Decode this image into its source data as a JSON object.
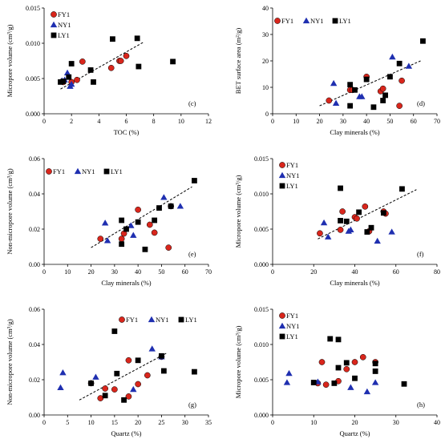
{
  "colors": {
    "FY1": "#d9261c",
    "NY1": "#1f2fb0",
    "LY1": "#000000"
  },
  "chart_data": [
    {
      "panel": "(c)",
      "type": "scatter",
      "xlabel": "TOC (%)",
      "ylabel": "Micropore volume (cm³/g)",
      "xlim": [
        0,
        12
      ],
      "ylim": [
        0,
        0.015
      ],
      "xticks": [
        0,
        2,
        4,
        6,
        8,
        10,
        12
      ],
      "yticks": [
        0,
        0.005,
        0.01,
        0.015
      ],
      "xtick_labels": [
        "0",
        "2",
        "4",
        "6",
        "8",
        "10",
        "12"
      ],
      "ytick_labels": [
        "0.000",
        "0.005",
        "0.010",
        "0.015"
      ],
      "legend": "top-left",
      "trend": [
        [
          1.2,
          0.0035
        ],
        [
          7.3,
          0.0102
        ]
      ],
      "series": [
        {
          "name": "FY1",
          "marker": "circle",
          "points": [
            [
              1.4,
              0.0045
            ],
            [
              2.0,
              0.0045
            ],
            [
              2.4,
              0.0048
            ],
            [
              2.8,
              0.0074
            ],
            [
              4.9,
              0.0065
            ],
            [
              5.5,
              0.0075
            ],
            [
              5.6,
              0.0075
            ],
            [
              6.0,
              0.0082
            ]
          ]
        },
        {
          "name": "NY1",
          "marker": "triangle",
          "points": [
            [
              1.3,
              0.0047
            ],
            [
              1.5,
              0.0048
            ],
            [
              1.7,
              0.0058
            ],
            [
              1.9,
              0.0039
            ],
            [
              2.0,
              0.0042
            ]
          ]
        },
        {
          "name": "LY1",
          "marker": "square",
          "points": [
            [
              1.2,
              0.0045
            ],
            [
              1.4,
              0.0046
            ],
            [
              1.8,
              0.0052
            ],
            [
              2.0,
              0.0071
            ],
            [
              3.4,
              0.0062
            ],
            [
              3.6,
              0.0045
            ],
            [
              5.0,
              0.0106
            ],
            [
              6.8,
              0.0107
            ],
            [
              6.9,
              0.0067
            ],
            [
              9.4,
              0.0074
            ]
          ]
        }
      ]
    },
    {
      "panel": "(d)",
      "type": "scatter",
      "xlabel": "Clay minerals (%)",
      "ylabel": "BET surface area (m²/g)",
      "xlim": [
        0,
        70
      ],
      "ylim": [
        0,
        40
      ],
      "xticks": [
        0,
        10,
        20,
        30,
        40,
        50,
        60,
        70
      ],
      "yticks": [
        0,
        10,
        20,
        30,
        40
      ],
      "xtick_labels": [
        "0",
        "10",
        "20",
        "30",
        "40",
        "50",
        "60",
        "70"
      ],
      "ytick_labels": [
        "0",
        "10",
        "20",
        "30",
        "40"
      ],
      "legend": "top-left-row",
      "trend": [
        [
          20,
          3
        ],
        [
          63,
          20
        ]
      ],
      "series": [
        {
          "name": "FY1",
          "marker": "circle",
          "points": [
            [
              24,
              5
            ],
            [
              33,
              9
            ],
            [
              34,
              9
            ],
            [
              40,
              14
            ],
            [
              46,
              8.5
            ],
            [
              47,
              9.5
            ],
            [
              54,
              3
            ],
            [
              55,
              12.5
            ]
          ]
        },
        {
          "name": "NY1",
          "marker": "triangle",
          "points": [
            [
              26,
              11.5
            ],
            [
              27,
              4
            ],
            [
              37,
              6.5
            ],
            [
              38,
              6.5
            ],
            [
              51,
              21.5
            ],
            [
              58,
              18
            ]
          ]
        },
        {
          "name": "LY1",
          "marker": "square",
          "points": [
            [
              33,
              11
            ],
            [
              33,
              3
            ],
            [
              35,
              9
            ],
            [
              40,
              13
            ],
            [
              43,
              2.5
            ],
            [
              47,
              5
            ],
            [
              48,
              7
            ],
            [
              50,
              14
            ],
            [
              54,
              19
            ],
            [
              64,
              27.5
            ]
          ]
        }
      ]
    },
    {
      "panel": "(e)",
      "type": "scatter",
      "xlabel": "Clay minerals (%)",
      "ylabel": "Non-micropore volume (cm³/g)",
      "xlim": [
        0,
        70
      ],
      "ylim": [
        0,
        0.06
      ],
      "xticks": [
        0,
        10,
        20,
        30,
        40,
        50,
        60,
        70
      ],
      "yticks": [
        0,
        0.02,
        0.04,
        0.06
      ],
      "xtick_labels": [
        "0",
        "10",
        "20",
        "30",
        "40",
        "50",
        "60",
        "70"
      ],
      "ytick_labels": [
        "0.00",
        "0.02",
        "0.04",
        "0.06"
      ],
      "legend": "top-left-row",
      "trend": [
        [
          20,
          0.0095
        ],
        [
          63,
          0.044
        ]
      ],
      "series": [
        {
          "name": "FY1",
          "marker": "circle",
          "points": [
            [
              24,
              0.0145
            ],
            [
              33,
              0.0145
            ],
            [
              34,
              0.0175
            ],
            [
              40,
              0.031
            ],
            [
              45,
              0.0225
            ],
            [
              47,
              0.018
            ],
            [
              53,
              0.0095
            ],
            [
              54,
              0.033
            ]
          ]
        },
        {
          "name": "NY1",
          "marker": "triangle",
          "points": [
            [
              26,
              0.0235
            ],
            [
              27,
              0.0135
            ],
            [
              37,
              0.022
            ],
            [
              38,
              0.0165
            ],
            [
              51,
              0.038
            ],
            [
              58,
              0.033
            ]
          ]
        },
        {
          "name": "LY1",
          "marker": "square",
          "points": [
            [
              33,
              0.025
            ],
            [
              33,
              0.0115
            ],
            [
              35,
              0.02
            ],
            [
              40,
              0.024
            ],
            [
              43,
              0.0085
            ],
            [
              47,
              0.025
            ],
            [
              49,
              0.032
            ],
            [
              54,
              0.033
            ],
            [
              64,
              0.0475
            ]
          ]
        }
      ]
    },
    {
      "panel": "(f)",
      "type": "scatter",
      "xlabel": "Clay minerals (%)",
      "ylabel": "Micropore volume (cm³/g)",
      "xlim": [
        0,
        80
      ],
      "ylim": [
        0,
        0.015
      ],
      "xticks": [
        0,
        20,
        40,
        60,
        80
      ],
      "yticks": [
        0,
        0.005,
        0.01,
        0.015
      ],
      "xtick_labels": [
        "0",
        "20",
        "40",
        "60",
        "80"
      ],
      "ytick_labels": [
        "0.000",
        "0.005",
        "0.010",
        "0.015"
      ],
      "legend": "top-left",
      "trend": [
        [
          22,
          0.0036
        ],
        [
          70,
          0.0106
        ]
      ],
      "series": [
        {
          "name": "FY1",
          "marker": "circle",
          "points": [
            [
              23,
              0.0044
            ],
            [
              33,
              0.0049
            ],
            [
              34,
              0.0075
            ],
            [
              40,
              0.0067
            ],
            [
              41,
              0.0065
            ],
            [
              45,
              0.0082
            ],
            [
              47,
              0.0047
            ],
            [
              54,
              0.0075
            ],
            [
              55,
              0.0072
            ]
          ]
        },
        {
          "name": "NY1",
          "marker": "triangle",
          "points": [
            [
              25,
              0.0059
            ],
            [
              27,
              0.0039
            ],
            [
              37,
              0.0047
            ],
            [
              38,
              0.0049
            ],
            [
              51,
              0.0033
            ],
            [
              58,
              0.0046
            ]
          ]
        },
        {
          "name": "LY1",
          "marker": "square",
          "points": [
            [
              33,
              0.0108
            ],
            [
              33,
              0.0062
            ],
            [
              36,
              0.0061
            ],
            [
              42,
              0.0074
            ],
            [
              46,
              0.0046
            ],
            [
              48,
              0.0052
            ],
            [
              54,
              0.0073
            ],
            [
              63,
              0.0107
            ]
          ]
        }
      ]
    },
    {
      "panel": "(g)",
      "type": "scatter",
      "xlabel": "Quartz (%)",
      "ylabel": "Non-micropore volume (cm³/g)",
      "xlim": [
        0,
        35
      ],
      "ylim": [
        0,
        0.06
      ],
      "xticks": [
        0,
        5,
        10,
        15,
        20,
        25,
        30,
        35
      ],
      "yticks": [
        0,
        0.02,
        0.04,
        0.06
      ],
      "xtick_labels": [
        "0",
        "5",
        "10",
        "15",
        "20",
        "25",
        "30",
        "35"
      ],
      "ytick_labels": [
        "0.00",
        "0.02",
        "0.04",
        "0.06"
      ],
      "legend": "top-right-row",
      "trend": [
        [
          7.5,
          0.0085
        ],
        [
          26,
          0.035
        ]
      ],
      "series": [
        {
          "name": "FY1",
          "marker": "circle",
          "points": [
            [
              10,
              0.018
            ],
            [
              12,
              0.0095
            ],
            [
              13,
              0.015
            ],
            [
              15,
              0.0145
            ],
            [
              18,
              0.031
            ],
            [
              18,
              0.0105
            ],
            [
              20,
              0.0175
            ],
            [
              22,
              0.0225
            ],
            [
              25,
              0.033
            ]
          ]
        },
        {
          "name": "NY1",
          "marker": "triangle",
          "points": [
            [
              3.5,
              0.0155
            ],
            [
              4,
              0.024
            ],
            [
              11,
              0.0215
            ],
            [
              19,
              0.0145
            ],
            [
              23,
              0.0375
            ],
            [
              25,
              0.033
            ]
          ]
        },
        {
          "name": "LY1",
          "marker": "square",
          "points": [
            [
              10,
              0.018
            ],
            [
              13,
              0.011
            ],
            [
              15,
              0.0475
            ],
            [
              15.5,
              0.0235
            ],
            [
              17,
              0.0085
            ],
            [
              20,
              0.031
            ],
            [
              25,
              0.0335
            ],
            [
              25.5,
              0.025
            ],
            [
              32,
              0.0245
            ]
          ]
        }
      ]
    },
    {
      "panel": "(h)",
      "type": "scatter",
      "xlabel": "Quartz (%)",
      "ylabel": "Micropore volume (cm³/g)",
      "xlim": [
        0,
        40
      ],
      "ylim": [
        0,
        0.015
      ],
      "xticks": [
        0,
        10,
        20,
        30,
        40
      ],
      "yticks": [
        0,
        0.005,
        0.01,
        0.015
      ],
      "xtick_labels": [
        "0",
        "10",
        "20",
        "30",
        "40"
      ],
      "ytick_labels": [
        "0.000",
        "0.005",
        "0.010",
        "0.015"
      ],
      "legend": "top-left",
      "trend": null,
      "series": [
        {
          "name": "FY1",
          "marker": "circle",
          "points": [
            [
              11,
              0.0045
            ],
            [
              12,
              0.0075
            ],
            [
              13,
              0.0043
            ],
            [
              16,
              0.0048
            ],
            [
              18,
              0.0065
            ],
            [
              20,
              0.0075
            ],
            [
              22,
              0.0082
            ],
            [
              25,
              0.0075
            ]
          ]
        },
        {
          "name": "NY1",
          "marker": "triangle",
          "points": [
            [
              3.5,
              0.0046
            ],
            [
              4,
              0.0059
            ],
            [
              11,
              0.0047
            ],
            [
              19,
              0.0039
            ],
            [
              23,
              0.0033
            ],
            [
              25,
              0.0046
            ]
          ]
        },
        {
          "name": "LY1",
          "marker": "square",
          "points": [
            [
              10,
              0.0046
            ],
            [
              14,
              0.0108
            ],
            [
              15,
              0.0045
            ],
            [
              16,
              0.0107
            ],
            [
              16,
              0.0067
            ],
            [
              18,
              0.0074
            ],
            [
              20,
              0.0052
            ],
            [
              25,
              0.0073
            ],
            [
              25,
              0.0062
            ],
            [
              32,
              0.0044
            ]
          ]
        }
      ]
    }
  ]
}
